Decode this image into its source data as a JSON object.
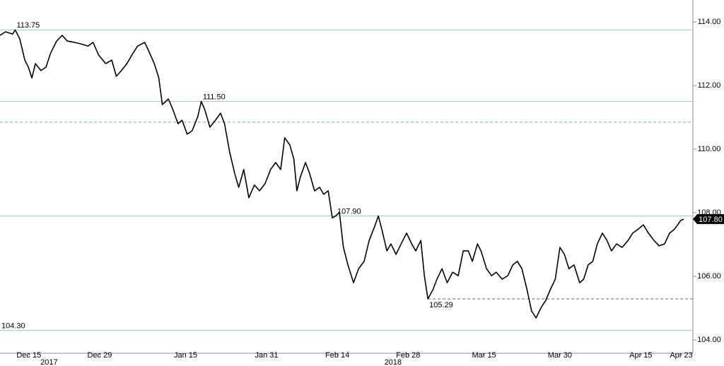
{
  "chart_data": {
    "type": "line",
    "color": "#000000",
    "x": [
      -5.7,
      -4.6,
      -3.2,
      -2.7,
      -1.8,
      -0.8,
      -0.1,
      0.6,
      1.3,
      2.4,
      3.4,
      4.3,
      5.5,
      6.6,
      7.6,
      9.0,
      10.3,
      11.7,
      12.7,
      13.8,
      15.2,
      16.4,
      17.3,
      18.3,
      19.4,
      20.6,
      21.5,
      22.9,
      23.9,
      24.8,
      25.7,
      26.4,
      27.6,
      28.5,
      29.5,
      30.3,
      31.3,
      32.3,
      33.4,
      34.1,
      34.8,
      35.8,
      36.9,
      37.9,
      38.7,
      39.7,
      40.7,
      41.5,
      42.5,
      43.5,
      44.6,
      45.6,
      46.7,
      47.8,
      48.8,
      49.8,
      50.6,
      51.6,
      52.4,
      53.0,
      53.7,
      54.7,
      55.5,
      56.5,
      57.5,
      58.3,
      59.2,
      60.0,
      60.7,
      61.4,
      62.2,
      63.1,
      64.2,
      65.2,
      66.3,
      67.3,
      68.4,
      69.1,
      69.8,
      70.8,
      71.6,
      72.6,
      73.6,
      74.7,
      75.7,
      76.5,
      77.5,
      78.2,
      78.9,
      79.9,
      80.7,
      81.7,
      82.7,
      83.8,
      84.9,
      85.9,
      86.9,
      87.7,
      88.7,
      89.4,
      90.5,
      91.5,
      92.4,
      93.6,
      94.7,
      95.7,
      96.6,
      97.5,
      98.5,
      99.4,
      100.3,
      101.3,
      102.2,
      103.1,
      104.1,
      105.0,
      105.9,
      106.8,
      107.8,
      108.9,
      109.7,
      110.6,
      111.5,
      112.4,
      113.4,
      114.3,
      115.2,
      116.2,
      117.3,
      118.5,
      119.4,
      120.4,
      121.5,
      122.5,
      123.6,
      124.6,
      125.7,
      126.7,
      127.6,
      128.3,
      128.9,
      129.5
    ],
    "values": [
      113.58,
      113.69,
      113.62,
      113.75,
      113.47,
      112.8,
      112.58,
      112.24,
      112.69,
      112.47,
      112.58,
      113.02,
      113.4,
      113.58,
      113.4,
      113.36,
      113.31,
      113.24,
      113.36,
      112.96,
      112.69,
      112.8,
      112.29,
      112.47,
      112.69,
      113.02,
      113.24,
      113.36,
      113.02,
      112.69,
      112.24,
      111.4,
      111.58,
      111.24,
      110.8,
      110.91,
      110.47,
      110.58,
      111.02,
      111.5,
      111.24,
      110.69,
      110.91,
      111.13,
      110.8,
      109.91,
      109.24,
      108.8,
      109.36,
      108.47,
      108.87,
      108.69,
      108.91,
      109.36,
      109.58,
      109.36,
      110.36,
      110.13,
      109.69,
      108.69,
      109.13,
      109.58,
      109.24,
      108.69,
      108.8,
      108.58,
      108.69,
      107.84,
      107.9,
      108.02,
      106.91,
      106.36,
      105.8,
      106.24,
      106.47,
      107.13,
      107.58,
      107.9,
      107.47,
      106.8,
      107.02,
      106.69,
      107.02,
      107.36,
      107.02,
      106.8,
      107.13,
      106.02,
      105.29,
      105.58,
      105.91,
      106.24,
      105.8,
      106.13,
      106.02,
      106.8,
      106.8,
      106.47,
      107.02,
      106.8,
      106.24,
      106.02,
      106.13,
      105.91,
      106.02,
      106.36,
      106.47,
      106.24,
      105.58,
      104.91,
      104.69,
      105.02,
      105.24,
      105.58,
      105.91,
      106.91,
      106.69,
      106.24,
      106.36,
      105.8,
      105.91,
      106.36,
      106.47,
      107.02,
      107.36,
      107.13,
      106.8,
      107.02,
      106.91,
      107.13,
      107.36,
      107.47,
      107.62,
      107.36,
      107.13,
      106.96,
      107.02,
      107.36,
      107.47,
      107.62,
      107.76,
      107.8
    ],
    "xlim": [
      -5.7,
      131.3
    ],
    "ylim": [
      103.58,
      114.69
    ],
    "yticks": [
      {
        "value": 104,
        "label": "104.00"
      },
      {
        "value": 106,
        "label": "106.00"
      },
      {
        "value": 108,
        "label": "108.00"
      },
      {
        "value": 110,
        "label": "110.00"
      },
      {
        "value": 112,
        "label": "112.00"
      },
      {
        "value": 114,
        "label": "114.00"
      }
    ],
    "xticks": [
      {
        "value": 0,
        "label": "Dec 15"
      },
      {
        "value": 14,
        "label": "Dec 29"
      },
      {
        "value": 31,
        "label": "Jan 15"
      },
      {
        "value": 47,
        "label": "Jan 31"
      },
      {
        "value": 61,
        "label": "Feb 14"
      },
      {
        "value": 75,
        "label": "Feb 28"
      },
      {
        "value": 90,
        "label": "Mar 15"
      },
      {
        "value": 105,
        "label": "Mar 30"
      },
      {
        "value": 121,
        "label": "Apr 15"
      },
      {
        "value": 129,
        "label": "Apr 23"
      }
    ],
    "year_labels": [
      {
        "value": 4,
        "label": "2017"
      },
      {
        "value": 72,
        "label": "2018"
      }
    ],
    "reference_lines": [
      {
        "value": 113.75,
        "x": -2.7,
        "style": "solid",
        "color": "#8fd3b6"
      },
      {
        "value": 111.5,
        "label": "111.50",
        "x": 34.1,
        "style": "solid",
        "color": "#8fd3b6"
      },
      {
        "value": 110.85,
        "style": "dashed",
        "color": "#5fb79a"
      },
      {
        "value": 107.9,
        "label": "107.90",
        "x": 60.7,
        "style": "solid",
        "color": "#8fd3b6"
      },
      {
        "value": 105.29,
        "x": 78.9,
        "style": "dashed",
        "color": "#666666"
      },
      {
        "value": 104.3,
        "label": "104.30",
        "x": -5.7,
        "style": "solid",
        "color": "#8fd3b6"
      }
    ],
    "last_value": {
      "value": 107.8,
      "label": "107.80"
    }
  }
}
